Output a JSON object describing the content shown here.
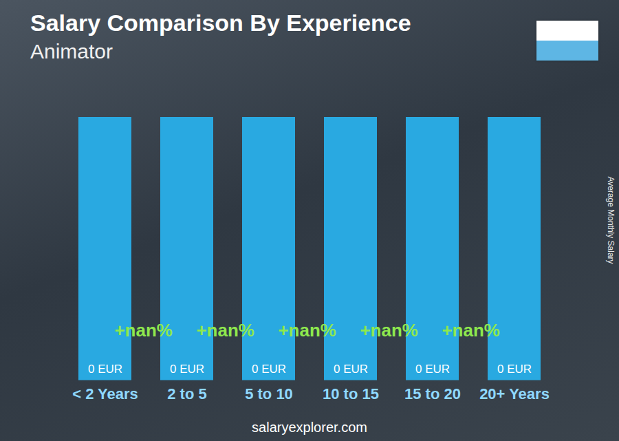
{
  "chart_data": {
    "type": "bar",
    "title": "Salary Comparison By Experience",
    "subtitle": "Animator",
    "y_label": "Average Monthly Salary",
    "categories": [
      "< 2 Years",
      "2 to 5",
      "5 to 10",
      "10 to 15",
      "15 to 20",
      "20+ Years"
    ],
    "values": [
      0,
      0,
      0,
      0,
      0,
      0
    ],
    "value_labels": [
      "0 EUR",
      "0 EUR",
      "0 EUR",
      "0 EUR",
      "0 EUR",
      "0 EUR"
    ],
    "data_labels": true,
    "annotations": [
      "+nan%",
      "+nan%",
      "+nan%",
      "+nan%",
      "+nan%"
    ],
    "color": "#29a9e1",
    "tick_labels": "x",
    "caption": "salaryexplorer.com"
  }
}
